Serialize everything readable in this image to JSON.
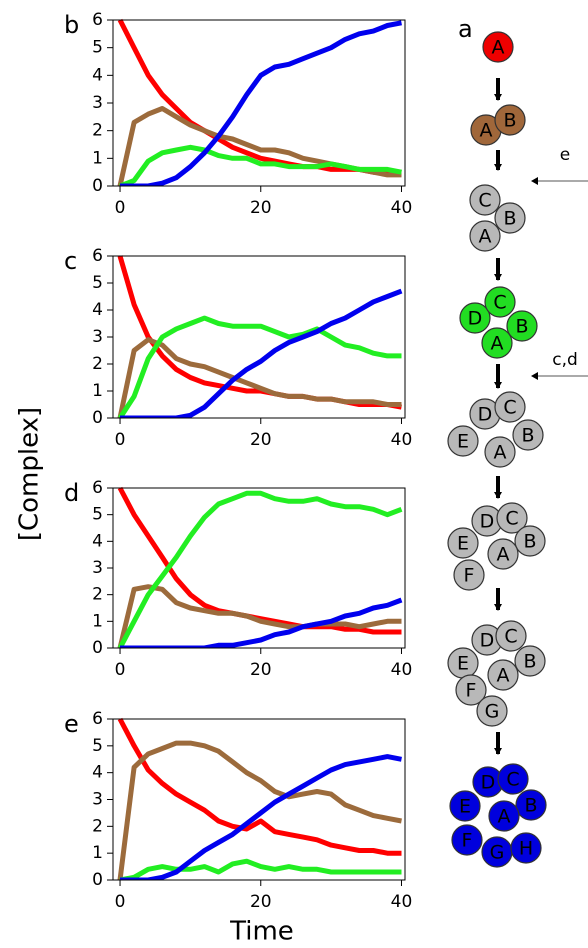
{
  "figure": {
    "ylabel": "[Complex]",
    "xlabel": "Time"
  },
  "chart_data": [
    {
      "type": "line",
      "panel": "b",
      "xlim": [
        -1,
        40.5
      ],
      "ylim": [
        0,
        6
      ],
      "xticks": [
        0,
        20,
        40
      ],
      "yticks": [
        0,
        1,
        2,
        3,
        4,
        5,
        6
      ],
      "x": [
        0,
        2,
        4,
        6,
        8,
        10,
        12,
        14,
        16,
        18,
        20,
        22,
        24,
        26,
        28,
        30,
        32,
        34,
        36,
        38,
        40
      ],
      "series": [
        {
          "color": "#ff0000",
          "values": [
            6,
            5.0,
            4.0,
            3.3,
            2.8,
            2.3,
            2.0,
            1.7,
            1.4,
            1.2,
            1.0,
            0.9,
            0.8,
            0.7,
            0.7,
            0.6,
            0.6,
            0.6,
            0.5,
            0.5,
            0.5
          ]
        },
        {
          "color": "#9c6b3c",
          "values": [
            0,
            2.3,
            2.6,
            2.8,
            2.5,
            2.2,
            2.0,
            1.8,
            1.7,
            1.5,
            1.3,
            1.3,
            1.2,
            1.0,
            0.9,
            0.8,
            0.7,
            0.6,
            0.5,
            0.4,
            0.4
          ]
        },
        {
          "color": "#22ee22",
          "values": [
            0,
            0.2,
            0.9,
            1.2,
            1.3,
            1.4,
            1.3,
            1.1,
            1.0,
            1.0,
            0.8,
            0.8,
            0.7,
            0.7,
            0.7,
            0.8,
            0.7,
            0.6,
            0.6,
            0.6,
            0.5
          ]
        },
        {
          "color": "#0000ee",
          "values": [
            0,
            0,
            0,
            0.1,
            0.3,
            0.7,
            1.2,
            1.8,
            2.5,
            3.3,
            4.0,
            4.3,
            4.4,
            4.6,
            4.8,
            5.0,
            5.3,
            5.5,
            5.6,
            5.8,
            5.9
          ]
        }
      ]
    },
    {
      "type": "line",
      "panel": "c",
      "xlim": [
        -1,
        40.5
      ],
      "ylim": [
        0,
        6
      ],
      "xticks": [
        0,
        20,
        40
      ],
      "yticks": [
        0,
        1,
        2,
        3,
        4,
        5,
        6
      ],
      "x": [
        0,
        2,
        4,
        6,
        8,
        10,
        12,
        14,
        16,
        18,
        20,
        22,
        24,
        26,
        28,
        30,
        32,
        34,
        36,
        38,
        40
      ],
      "series": [
        {
          "color": "#ff0000",
          "values": [
            6,
            4.2,
            3.0,
            2.3,
            1.8,
            1.5,
            1.3,
            1.2,
            1.1,
            1.0,
            1.0,
            0.9,
            0.8,
            0.8,
            0.7,
            0.7,
            0.6,
            0.5,
            0.5,
            0.5,
            0.4
          ]
        },
        {
          "color": "#9c6b3c",
          "values": [
            0,
            2.5,
            2.9,
            2.7,
            2.2,
            2.0,
            1.9,
            1.7,
            1.5,
            1.3,
            1.1,
            0.9,
            0.8,
            0.8,
            0.7,
            0.7,
            0.6,
            0.6,
            0.6,
            0.5,
            0.5
          ]
        },
        {
          "color": "#22ee22",
          "values": [
            0,
            0.8,
            2.2,
            3.0,
            3.3,
            3.5,
            3.7,
            3.5,
            3.4,
            3.4,
            3.4,
            3.2,
            3.0,
            3.1,
            3.3,
            3.0,
            2.7,
            2.6,
            2.4,
            2.3,
            2.3
          ]
        },
        {
          "color": "#0000ee",
          "values": [
            0,
            0,
            0,
            0,
            0,
            0.1,
            0.4,
            0.9,
            1.4,
            1.8,
            2.1,
            2.5,
            2.8,
            3.0,
            3.2,
            3.5,
            3.7,
            4.0,
            4.3,
            4.5,
            4.7
          ]
        }
      ]
    },
    {
      "type": "line",
      "panel": "d",
      "xlim": [
        -1,
        40.5
      ],
      "ylim": [
        0,
        6
      ],
      "xticks": [
        0,
        20,
        40
      ],
      "yticks": [
        0,
        1,
        2,
        3,
        4,
        5,
        6
      ],
      "x": [
        0,
        2,
        4,
        6,
        8,
        10,
        12,
        14,
        16,
        18,
        20,
        22,
        24,
        26,
        28,
        30,
        32,
        34,
        36,
        38,
        40
      ],
      "series": [
        {
          "color": "#ff0000",
          "values": [
            6,
            5.0,
            4.2,
            3.4,
            2.6,
            2.0,
            1.6,
            1.4,
            1.3,
            1.2,
            1.1,
            1.0,
            0.9,
            0.8,
            0.8,
            0.8,
            0.7,
            0.7,
            0.6,
            0.6,
            0.6
          ]
        },
        {
          "color": "#9c6b3c",
          "values": [
            0,
            2.2,
            2.3,
            2.2,
            1.7,
            1.5,
            1.4,
            1.3,
            1.3,
            1.2,
            1.0,
            0.9,
            0.8,
            0.8,
            0.9,
            0.9,
            0.9,
            0.8,
            0.9,
            1.0,
            1.0
          ]
        },
        {
          "color": "#22ee22",
          "values": [
            0,
            1.0,
            2.0,
            2.7,
            3.4,
            4.2,
            4.9,
            5.4,
            5.6,
            5.8,
            5.8,
            5.6,
            5.5,
            5.5,
            5.6,
            5.4,
            5.3,
            5.3,
            5.2,
            5.0,
            5.2
          ]
        },
        {
          "color": "#0000ee",
          "values": [
            0,
            0,
            0,
            0,
            0,
            0,
            0,
            0.1,
            0.1,
            0.2,
            0.3,
            0.5,
            0.6,
            0.8,
            0.9,
            1.0,
            1.2,
            1.3,
            1.5,
            1.6,
            1.8
          ]
        }
      ]
    },
    {
      "type": "line",
      "panel": "e",
      "xlim": [
        -1,
        40.5
      ],
      "ylim": [
        0,
        6
      ],
      "xticks": [
        0,
        20,
        40
      ],
      "yticks": [
        0,
        1,
        2,
        3,
        4,
        5,
        6
      ],
      "x": [
        0,
        2,
        4,
        6,
        8,
        10,
        12,
        14,
        16,
        18,
        20,
        22,
        24,
        26,
        28,
        30,
        32,
        34,
        36,
        38,
        40
      ],
      "series": [
        {
          "color": "#ff0000",
          "values": [
            6,
            5.0,
            4.1,
            3.6,
            3.2,
            2.9,
            2.6,
            2.2,
            2.0,
            1.9,
            2.2,
            1.8,
            1.7,
            1.6,
            1.5,
            1.3,
            1.2,
            1.1,
            1.1,
            1.0,
            1.0
          ]
        },
        {
          "color": "#9c6b3c",
          "values": [
            0,
            4.2,
            4.7,
            4.9,
            5.1,
            5.1,
            5.0,
            4.8,
            4.4,
            4.0,
            3.7,
            3.3,
            3.1,
            3.2,
            3.3,
            3.2,
            2.8,
            2.6,
            2.4,
            2.3,
            2.2
          ]
        },
        {
          "color": "#22ee22",
          "values": [
            0,
            0.1,
            0.4,
            0.5,
            0.4,
            0.4,
            0.5,
            0.3,
            0.6,
            0.7,
            0.5,
            0.4,
            0.5,
            0.4,
            0.4,
            0.3,
            0.3,
            0.3,
            0.3,
            0.3,
            0.3
          ]
        },
        {
          "color": "#0000ee",
          "values": [
            0,
            0,
            0,
            0.1,
            0.3,
            0.7,
            1.1,
            1.4,
            1.7,
            2.1,
            2.5,
            2.9,
            3.2,
            3.5,
            3.8,
            4.1,
            4.3,
            4.4,
            4.5,
            4.6,
            4.5
          ]
        }
      ]
    }
  ],
  "diagram": {
    "panel": "a",
    "side_arrows": [
      "e",
      "c,d"
    ],
    "states": [
      [
        "A"
      ],
      [
        "A",
        "B"
      ],
      [
        "C",
        "B",
        "A"
      ],
      [
        "D",
        "C",
        "B",
        "A"
      ],
      [
        "D",
        "C",
        "B",
        "E",
        "A"
      ],
      [
        "D",
        "C",
        "B",
        "E",
        "A",
        "F"
      ],
      [
        "D",
        "C",
        "B",
        "E",
        "A",
        "F",
        "G"
      ],
      [
        "D",
        "C",
        "B",
        "E",
        "A",
        "F",
        "G",
        "H"
      ]
    ]
  }
}
